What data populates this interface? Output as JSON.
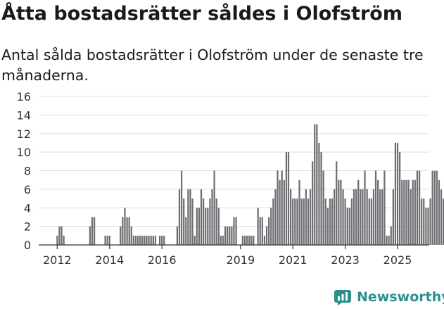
{
  "title": "Åtta bostadsrätter såldes i Olofström",
  "subtitle": "Antal sålda bostadsrätter i Olofström under de senaste tre månaderna.",
  "brand": {
    "name": "Newsworthy",
    "icon": "newsworthy-logo-icon"
  },
  "colors": {
    "bar": "#6e6d72",
    "highlight": "#17908a",
    "grid": "#dddddd",
    "axis": "#333333"
  },
  "chart_data": {
    "type": "bar",
    "x_type": "month",
    "start": "2012-01",
    "xlim": [
      "2011-06",
      "2026-05"
    ],
    "ylim": [
      0,
      16
    ],
    "yticks": [
      0,
      2,
      4,
      6,
      8,
      10,
      12,
      14,
      16
    ],
    "xticks": [
      {
        "date": "2012-02",
        "label": "2012"
      },
      {
        "date": "2014-02",
        "label": "2014"
      },
      {
        "date": "2016-02",
        "label": "2016"
      },
      {
        "date": "2019-02",
        "label": "2019"
      },
      {
        "date": "2021-02",
        "label": "2021"
      },
      {
        "date": "2023-02",
        "label": "2023"
      },
      {
        "date": "2025-02",
        "label": "2025"
      }
    ],
    "grid": true,
    "xlabel": "",
    "ylabel": "",
    "highlight_last": true,
    "last_label": "8",
    "values": [
      0,
      1,
      2,
      2,
      1,
      0,
      0,
      0,
      0,
      0,
      0,
      0,
      0,
      0,
      0,
      0,
      2,
      3,
      3,
      0,
      0,
      0,
      0,
      1,
      1,
      1,
      0,
      0,
      0,
      0,
      2,
      3,
      4,
      3,
      3,
      2,
      1,
      1,
      1,
      1,
      1,
      1,
      1,
      1,
      1,
      1,
      1,
      0,
      1,
      1,
      1,
      0,
      0,
      0,
      0,
      0,
      2,
      6,
      8,
      5,
      3,
      6,
      6,
      5,
      1,
      4,
      4,
      6,
      5,
      4,
      4,
      5,
      6,
      8,
      5,
      4,
      1,
      1,
      2,
      2,
      2,
      2,
      3,
      3,
      0,
      0,
      1,
      1,
      1,
      1,
      1,
      1,
      0,
      4,
      3,
      3,
      1,
      2,
      3,
      4,
      5,
      6,
      8,
      7,
      8,
      7,
      10,
      10,
      6,
      5,
      5,
      5,
      7,
      5,
      5,
      6,
      5,
      6,
      9,
      13,
      13,
      11,
      10,
      8,
      5,
      4,
      5,
      5,
      6,
      9,
      7,
      7,
      6,
      5,
      4,
      4,
      5,
      6,
      6,
      7,
      6,
      6,
      8,
      6,
      5,
      5,
      6,
      8,
      7,
      6,
      6,
      8,
      1,
      1,
      2,
      6,
      11,
      11,
      10,
      7,
      7,
      7,
      7,
      6,
      7,
      7,
      8,
      8,
      5,
      5,
      4,
      4,
      5,
      8,
      8,
      8,
      7,
      6,
      5,
      5,
      8,
      8
    ]
  }
}
